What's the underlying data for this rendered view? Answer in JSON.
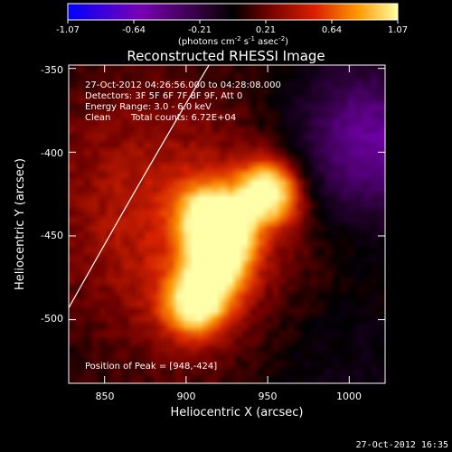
{
  "colorbar": {
    "tick_labels": [
      "-1.07",
      "-0.64",
      "-0.21",
      "0.21",
      "0.64",
      "1.07"
    ],
    "units_main": "(photons cm",
    "units_sup1": "-2",
    "units_mid": " s",
    "units_sup2": "-1",
    "units_tail": " asec",
    "units_sup3": "-2",
    "units_close": ")"
  },
  "chart_data": {
    "type": "heatmap",
    "title": "Reconstructed RHESSI Image",
    "xlabel": "Heliocentric X (arcsec)",
    "ylabel": "Heliocentric Y (arcsec)",
    "xlim": [
      828,
      1022
    ],
    "ylim": [
      -538,
      -348
    ],
    "x_ticks": [
      850,
      900,
      950,
      1000
    ],
    "x_tick_labels": [
      "850",
      "900",
      "950",
      "1000"
    ],
    "y_ticks": [
      -350,
      -400,
      -450,
      -500
    ],
    "y_tick_labels": [
      "-350",
      "-400",
      "-450",
      "-500"
    ],
    "colorbar_range": [
      -1.07,
      1.07
    ],
    "peak_position": [
      948,
      -424
    ],
    "limb_arc": [
      [
        828,
        -493
      ],
      [
        880,
        -403
      ],
      [
        914,
        -348
      ]
    ],
    "sources": [
      {
        "x": 950,
        "y": -424,
        "intensity": 1.07
      },
      {
        "x": 913,
        "y": -437,
        "intensity": 0.8
      },
      {
        "x": 923,
        "y": -449,
        "intensity": 0.85
      },
      {
        "x": 919,
        "y": -468,
        "intensity": 0.8
      },
      {
        "x": 906,
        "y": -490,
        "intensity": 1.0
      }
    ],
    "annotations": {
      "time_range": "27-Oct-2012 04:26:56.000 to 04:28:08.000",
      "detectors": "Detectors: 3F 5F 6F 7F 8F 9F, Att 0",
      "energy": "Energy Range: 3.0 - 6.0 keV",
      "clean_label": "Clean",
      "counts": "Total counts: 6.72E+04",
      "peak": "Position of Peak = [948,-424]"
    }
  },
  "footer": {
    "timestamp": "27-Oct-2012 16:35"
  }
}
